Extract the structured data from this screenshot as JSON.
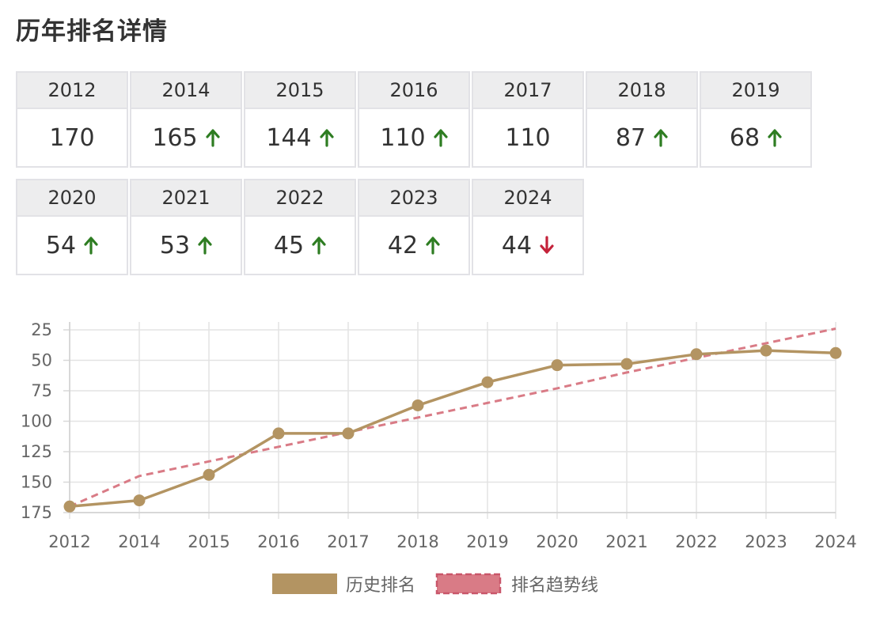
{
  "title": "历年排名详情",
  "colors": {
    "up": "#2e7d22",
    "down": "#c4223a",
    "history": "#b39462",
    "trend": "#d97b86"
  },
  "rank_rows": [
    [
      {
        "year": "2012",
        "rank": "170",
        "change": "none"
      },
      {
        "year": "2014",
        "rank": "165",
        "change": "up"
      },
      {
        "year": "2015",
        "rank": "144",
        "change": "up"
      },
      {
        "year": "2016",
        "rank": "110",
        "change": "up"
      },
      {
        "year": "2017",
        "rank": "110",
        "change": "none"
      },
      {
        "year": "2018",
        "rank": "87",
        "change": "up"
      },
      {
        "year": "2019",
        "rank": "68",
        "change": "up"
      }
    ],
    [
      {
        "year": "2020",
        "rank": "54",
        "change": "up"
      },
      {
        "year": "2021",
        "rank": "53",
        "change": "up"
      },
      {
        "year": "2022",
        "rank": "45",
        "change": "up"
      },
      {
        "year": "2023",
        "rank": "42",
        "change": "up"
      },
      {
        "year": "2024",
        "rank": "44",
        "change": "down"
      }
    ]
  ],
  "chart_data": {
    "type": "line",
    "categories": [
      "2012",
      "2014",
      "2015",
      "2016",
      "2017",
      "2018",
      "2019",
      "2020",
      "2021",
      "2022",
      "2023",
      "2024"
    ],
    "series": [
      {
        "name": "历史排名",
        "style": "solid-with-markers",
        "color": "#b39462",
        "values": [
          170,
          165,
          144,
          110,
          110,
          87,
          68,
          54,
          53,
          45,
          42,
          44
        ]
      },
      {
        "name": "排名趋势线",
        "style": "dashed",
        "color": "#d97b86",
        "values": [
          170,
          145,
          133,
          121,
          109,
          97,
          85,
          73,
          60,
          48,
          36,
          24
        ]
      }
    ],
    "y_axis": {
      "reversed": true,
      "ticks": [
        25,
        50,
        75,
        100,
        125,
        150,
        175
      ],
      "range": [
        175,
        25
      ]
    },
    "grid": true,
    "legend_position": "bottom-center"
  }
}
